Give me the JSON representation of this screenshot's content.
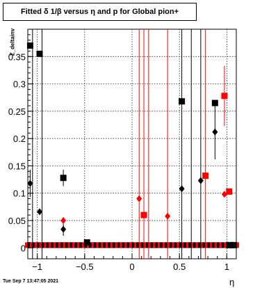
{
  "chart_data": {
    "type": "scatter",
    "title": "Fitted δ 1/β versus η and p for Global pion+",
    "xlabel": "η",
    "ylabel": "Z_deltainv",
    "date_stamp": "Tue Sep  7 13:47:05 2021",
    "xlim": [
      -1.1,
      1.1
    ],
    "ylim": [
      -0.02,
      0.4
    ],
    "x_ticks": [
      {
        "value": -1,
        "label": "−1"
      },
      {
        "value": -0.5,
        "label": "−0.5"
      },
      {
        "value": 0,
        "label": "0"
      },
      {
        "value": 0.5,
        "label": "0.5"
      },
      {
        "value": 1,
        "label": "1"
      }
    ],
    "y_ticks": [
      {
        "value": 0,
        "label": "0"
      },
      {
        "value": 0.05,
        "label": "0.05"
      },
      {
        "value": 0.1,
        "label": "0.1"
      },
      {
        "value": 0.15,
        "label": "0.15"
      },
      {
        "value": 0.2,
        "label": "0.2"
      },
      {
        "value": 0.25,
        "label": "0.25"
      },
      {
        "value": 0.3,
        "label": "0.3"
      },
      {
        "value": 0.35,
        "label": "0.35"
      }
    ],
    "grid": true,
    "colors": {
      "black": "#000000",
      "red": "#ff0000"
    },
    "series": [
      {
        "color": "#000000",
        "marker": "square",
        "points": [
          {
            "x": -1.075,
            "y": 0.37,
            "err": 0.0
          },
          {
            "x": -0.975,
            "y": 0.355,
            "err": 0.0
          },
          {
            "x": -0.725,
            "y": 0.128,
            "err": 0.015
          },
          {
            "x": -0.475,
            "y": 0.01,
            "err": 0.0
          },
          {
            "x": 0.525,
            "y": 0.268,
            "err": 0.0
          },
          {
            "x": 0.875,
            "y": 0.265,
            "err": 0.0
          },
          {
            "x": 1.025,
            "y": 0.005,
            "err": 0.0
          },
          {
            "x": 1.075,
            "y": 0.005,
            "err": 0.0
          }
        ]
      },
      {
        "color": "#000000",
        "marker": "diamond",
        "points": [
          {
            "x": -1.075,
            "y": 0.118,
            "err": 0.025
          },
          {
            "x": -0.975,
            "y": 0.066,
            "err": 0.0
          },
          {
            "x": -0.725,
            "y": 0.034,
            "err": 0.012
          },
          {
            "x": 0.525,
            "y": 0.108,
            "err": 0.0
          },
          {
            "x": 0.725,
            "y": 0.123,
            "err": 0.0
          },
          {
            "x": 0.875,
            "y": 0.212,
            "err": 0.05
          },
          {
            "x": 1.05,
            "y": 0.005,
            "err": 0.0
          }
        ]
      },
      {
        "color": "#ff0000",
        "marker": "square",
        "points": [
          {
            "x": 0.125,
            "y": 0.06,
            "err": 0.0
          },
          {
            "x": 0.775,
            "y": 0.132,
            "err": 0.0
          },
          {
            "x": 0.975,
            "y": 0.278,
            "err": 0.055
          },
          {
            "x": 1.025,
            "y": 0.103,
            "err": 0.0
          }
        ]
      },
      {
        "color": "#ff0000",
        "marker": "diamond",
        "points": [
          {
            "x": -0.725,
            "y": 0.05,
            "err": 0.006
          },
          {
            "x": 0.075,
            "y": 0.09,
            "err": 0.0
          },
          {
            "x": 0.375,
            "y": 0.058,
            "err": 0.0
          },
          {
            "x": 0.975,
            "y": 0.098,
            "err": 0.0
          }
        ]
      }
    ],
    "full_range_error_bars": [
      {
        "x": -1.05,
        "color": "#000000"
      },
      {
        "x": -0.95,
        "color": "#000000"
      },
      {
        "x": 0.075,
        "color": "#ff0000"
      },
      {
        "x": 0.125,
        "color": "#ff0000"
      },
      {
        "x": 0.175,
        "color": "#ff0000"
      },
      {
        "x": 0.375,
        "color": "#ff0000"
      },
      {
        "x": 0.525,
        "color": "#000000"
      },
      {
        "x": 0.625,
        "color": "#000000"
      },
      {
        "x": 0.725,
        "color": "#000000"
      },
      {
        "x": 0.775,
        "color": "#ff0000"
      }
    ],
    "baseline_band": {
      "y": 0.005,
      "x_from": -1.1,
      "x_to": 1.1,
      "colors": [
        "#ff0000",
        "#000000"
      ]
    }
  }
}
